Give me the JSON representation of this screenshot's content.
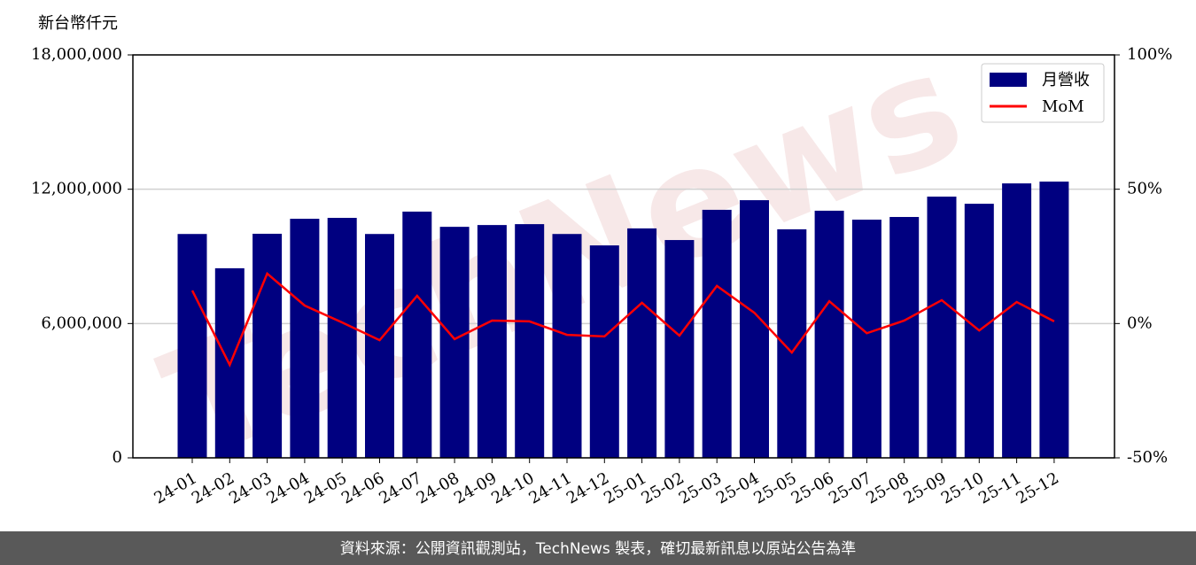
{
  "chart_data": {
    "type": "bar_line",
    "y_label": "新台幣仟元",
    "footer": "資料來源：公開資訊觀測站，TechNews 製表，確切最新訊息以原站公告為準",
    "watermark": "TechNews",
    "categories": [
      "24-01",
      "24-02",
      "24-03",
      "24-04",
      "24-05",
      "24-06",
      "24-07",
      "24-08",
      "24-09",
      "24-10",
      "24-11",
      "24-12",
      "25-01",
      "25-02",
      "25-03",
      "25-04",
      "25-05",
      "25-06",
      "25-07",
      "25-08",
      "25-09",
      "25-10",
      "25-11",
      "25-12"
    ],
    "series": [
      {
        "name": "月營收",
        "type": "bar",
        "color": "#000080",
        "values": [
          10000000,
          8470000,
          10010000,
          10680000,
          10720000,
          10000000,
          11000000,
          10320000,
          10400000,
          10440000,
          10000000,
          9490000,
          10250000,
          9730000,
          11080000,
          11510000,
          10210000,
          11040000,
          10640000,
          10760000,
          11670000,
          11350000,
          12260000,
          12340000
        ]
      },
      {
        "name": "MoM",
        "type": "line",
        "axis": "y2",
        "color": "#ff0000",
        "values": [
          12.3,
          -15.4,
          18.6,
          6.7,
          0.4,
          -6.2,
          10.3,
          -5.8,
          1.1,
          0.8,
          -4.2,
          -4.8,
          7.7,
          -4.5,
          14.0,
          4.0,
          -10.8,
          8.3,
          -3.6,
          1.1,
          8.7,
          -2.6,
          8.0,
          0.8
        ]
      }
    ],
    "ylim": [
      0,
      18000000
    ],
    "yticks": [
      0,
      {
        "value": 6000000,
        "label": "6,000,000"
      },
      {
        "value": 12000000,
        "label": "12,000,000"
      },
      {
        "value": 18000000,
        "label": "18,000,000"
      }
    ],
    "y2lim": [
      -50,
      100
    ],
    "y2ticks": [
      {
        "value": -50,
        "label": "-50%"
      },
      {
        "value": 0,
        "label": "0%"
      },
      {
        "value": 50,
        "label": "50%"
      },
      {
        "value": 100,
        "label": "100%"
      }
    ],
    "grid": true,
    "legend": "upper right"
  }
}
